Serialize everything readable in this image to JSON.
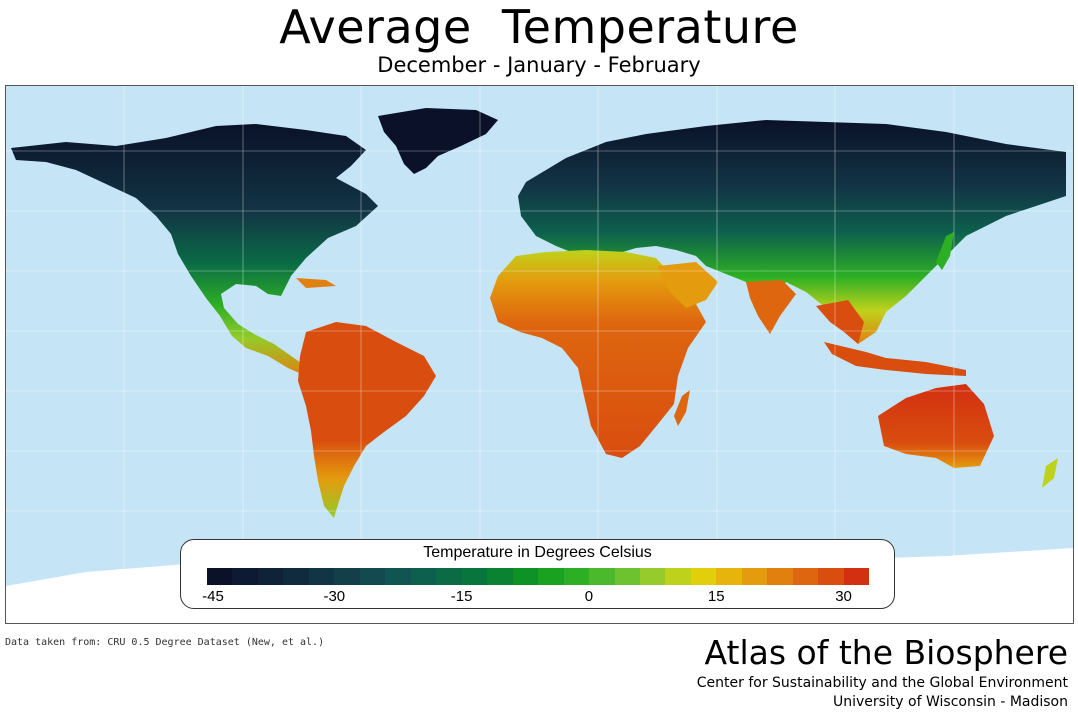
{
  "title": "Average  Temperature",
  "subtitle": "December - January - February",
  "legend": {
    "title": "Temperature in Degrees Celsius",
    "ticks": [
      "-45",
      "-30",
      "-15",
      "0",
      "15",
      "30"
    ],
    "tick_values": [
      -45,
      -30,
      -15,
      0,
      15,
      30
    ],
    "min": -45,
    "max": 33,
    "colors": [
      "#0a1128",
      "#0d1a33",
      "#0f2238",
      "#102b3e",
      "#123545",
      "#133f4b",
      "#134a50",
      "#105551",
      "#0d604d",
      "#0a6b45",
      "#08763c",
      "#098331",
      "#0e9125",
      "#1aa11f",
      "#2daf24",
      "#4ab92b",
      "#6cc22f",
      "#95cb2a",
      "#bfd21b",
      "#e2cf0c",
      "#e6b40c",
      "#e49b0e",
      "#e1800f",
      "#de660f",
      "#d94d0f",
      "#d23010"
    ]
  },
  "source_note": "Data taken from: CRU 0.5 Degree Dataset (New, et al.)",
  "brand": {
    "name": "Atlas of the Biosphere",
    "org_line1": "Center for Sustainability and the Global Environment",
    "org_line2": "University of Wisconsin - Madison"
  },
  "colors": {
    "ocean": "#c5e5f7",
    "ice": "#ffffff",
    "coldest": "#0a1128",
    "hottest": "#d23010"
  }
}
